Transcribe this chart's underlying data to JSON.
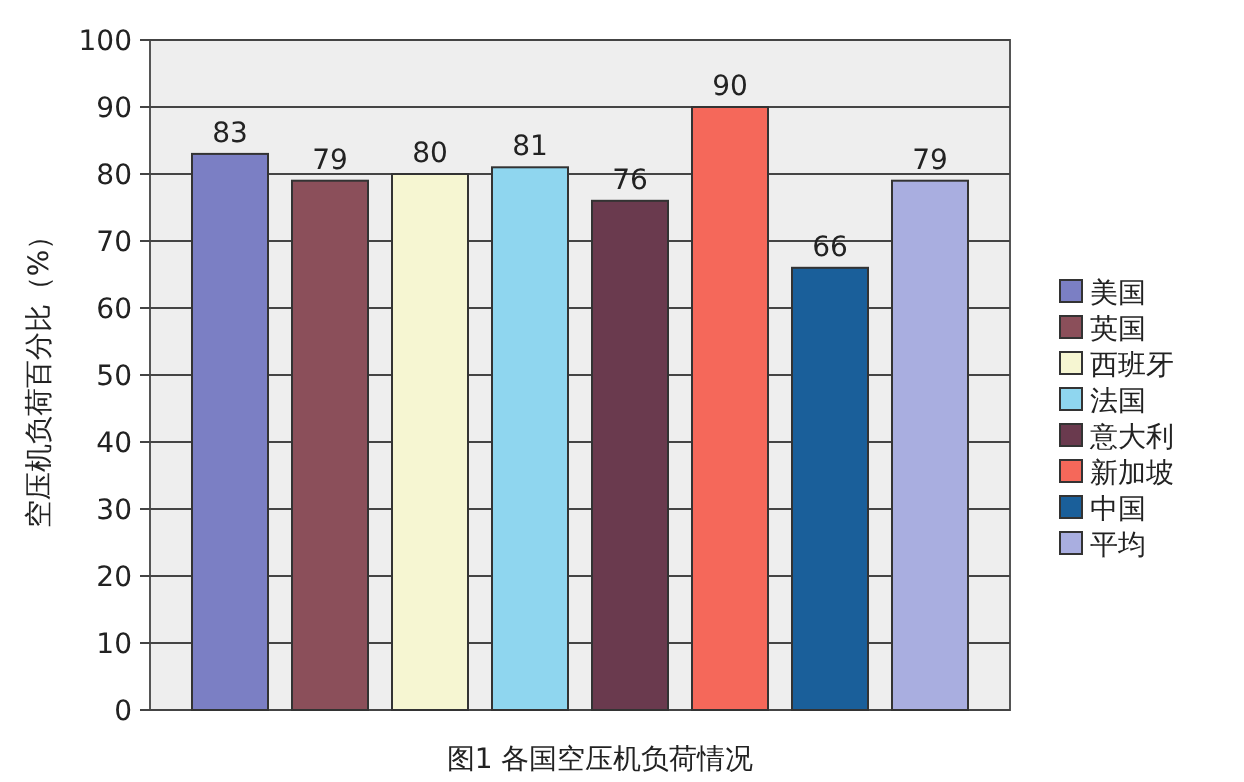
{
  "chart_data": {
    "type": "bar",
    "title": "图1 各国空压机负荷情况",
    "ylabel": "空压机负荷百分比（%）",
    "categories": [
      null
    ],
    "series": [
      {
        "name": "美国",
        "color": "#7b7fc4",
        "values": [
          83
        ]
      },
      {
        "name": "英国",
        "color": "#8b4f5a",
        "values": [
          79
        ]
      },
      {
        "name": "西班牙",
        "color": "#f6f6d2",
        "values": [
          80
        ]
      },
      {
        "name": "法国",
        "color": "#8fd6ef",
        "values": [
          81
        ]
      },
      {
        "name": "意大利",
        "color": "#6a3a4e",
        "values": [
          76
        ]
      },
      {
        "name": "新加坡",
        "color": "#f5685a",
        "values": [
          90
        ]
      },
      {
        "name": "中国",
        "color": "#1a5f9a",
        "values": [
          66
        ]
      },
      {
        "name": "平均",
        "color": "#a9aee0",
        "values": [
          79
        ]
      }
    ],
    "ylim": [
      0,
      100
    ],
    "yticks": [
      0,
      10,
      20,
      30,
      40,
      50,
      60,
      70,
      80,
      90,
      100
    ],
    "grid": "y",
    "legend": "right",
    "data_labels": true
  }
}
